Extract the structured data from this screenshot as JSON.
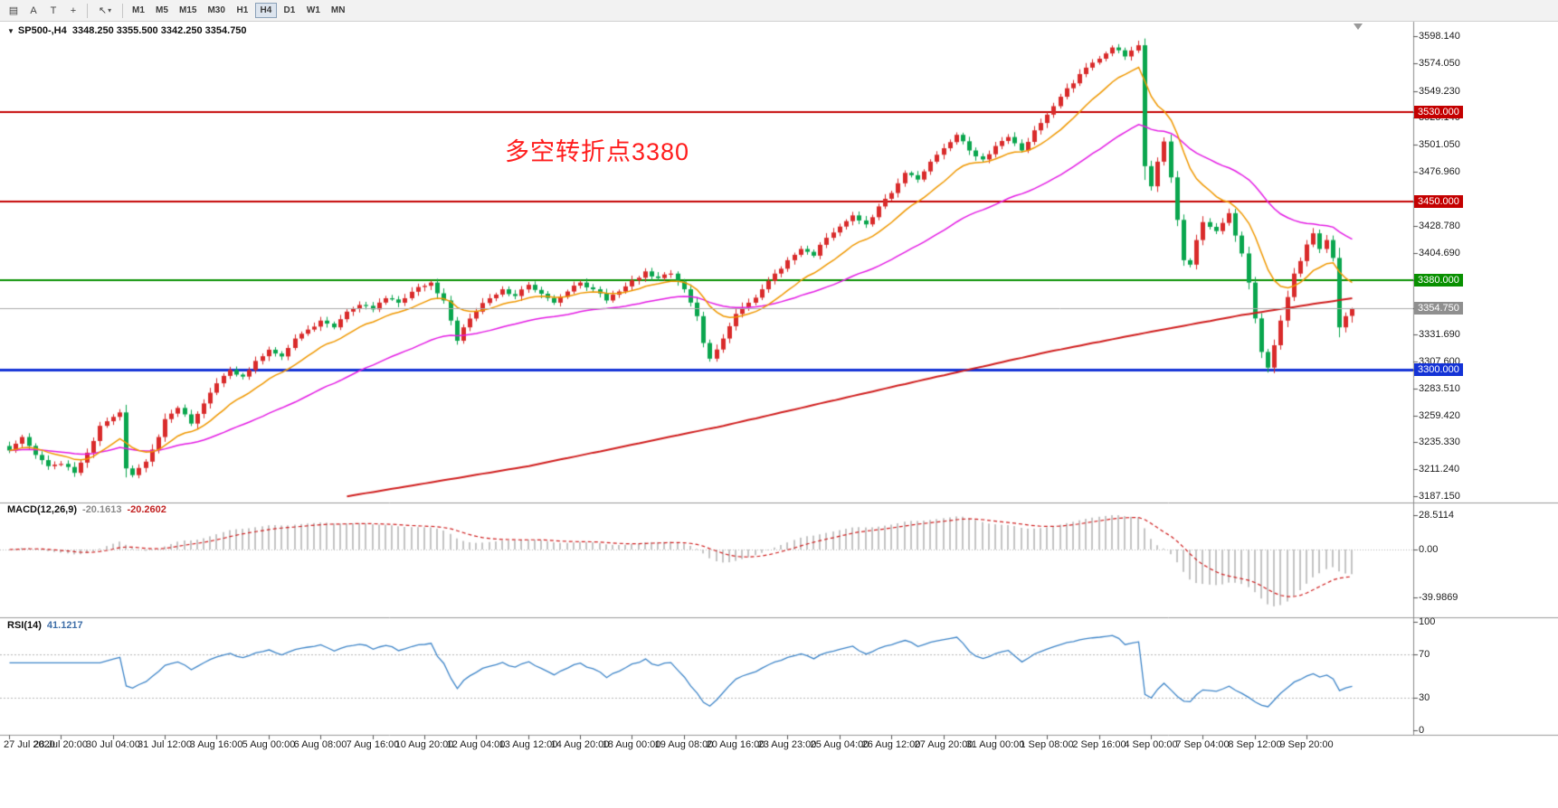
{
  "toolbar": {
    "tools": [
      {
        "name": "chart-window",
        "glyph": "▤"
      },
      {
        "name": "cursor-a",
        "glyph": "A"
      },
      {
        "name": "text-label",
        "glyph": "T"
      },
      {
        "name": "crosshair",
        "glyph": "+"
      }
    ],
    "draw_tool": {
      "name": "arrow-tools",
      "glyph": "↖",
      "caret": "▾"
    },
    "timeframes": [
      "M1",
      "M5",
      "M15",
      "M30",
      "H1",
      "H4",
      "D1",
      "W1",
      "MN"
    ],
    "selected_timeframe": "H4"
  },
  "chart": {
    "title_symbol": "SP500-,H4",
    "title_ohlc": "3348.250 3355.500 3342.250 3354.750",
    "annotation": {
      "text": "多空转折点3380",
      "color": "#ff1d1d"
    },
    "price_ticks": [
      "3598.140",
      "3574.050",
      "3549.230",
      "3525.140",
      "3501.050",
      "3476.960",
      "3428.780",
      "3404.690",
      "3331.690",
      "3307.600",
      "3283.510",
      "3259.420",
      "3235.330",
      "3211.240",
      "3187.150"
    ],
    "hlines": [
      {
        "label": "3530.000",
        "price": 3530.0,
        "color": "#c40000",
        "width": 2
      },
      {
        "label": "3450.000",
        "price": 3450.0,
        "color": "#c40000",
        "width": 2
      },
      {
        "label": "3380.000",
        "price": 3380.0,
        "color": "#089000",
        "width": 2
      },
      {
        "label": "3300.000",
        "price": 3300.0,
        "color": "#1433d6",
        "width": 3
      }
    ],
    "current_price": {
      "label": "3354.750",
      "price": 3354.75,
      "line_color": "#aaaaaa",
      "badge_color": "#8f8f8f"
    }
  },
  "macd": {
    "name": "MACD(12,26,9)",
    "value1": "-20.1613",
    "value2": "-20.2602",
    "ticks": [
      {
        "label": "28.5114",
        "v": 28.5114
      },
      {
        "label": "0.00",
        "v": 0
      },
      {
        "label": "-39.9869",
        "v": -39.9869
      }
    ]
  },
  "rsi": {
    "name": "RSI(14)",
    "value": "41.1217",
    "ticks": [
      {
        "label": "100",
        "v": 100
      },
      {
        "label": "70",
        "v": 70
      },
      {
        "label": "30",
        "v": 30
      },
      {
        "label": "0",
        "v": 0
      }
    ],
    "levels": [
      70,
      30
    ]
  },
  "chart_data": {
    "type": "candlestick",
    "symbol": "SP500-",
    "timeframe": "H4",
    "title": "SP500- H4 with MACD(12,26,9) and RSI(14)",
    "price_axis_range": [
      3187.15,
      3598.14
    ],
    "x_labels": [
      "27 Jul 2020",
      "28 Jul 20:00",
      "30 Jul 04:00",
      "31 Jul 12:00",
      "3 Aug 16:00",
      "5 Aug 00:00",
      "6 Aug 08:00",
      "7 Aug 16:00",
      "10 Aug 20:00",
      "12 Aug 04:00",
      "13 Aug 12:00",
      "14 Aug 20:00",
      "18 Aug 00:00",
      "19 Aug 08:00",
      "20 Aug 16:00",
      "23 Aug 23:00",
      "25 Aug 04:00",
      "26 Aug 12:00",
      "27 Aug 20:00",
      "31 Aug 00:00",
      "1 Sep 08:00",
      "2 Sep 16:00",
      "4 Sep 00:00",
      "7 Sep 04:00",
      "8 Sep 12:00",
      "9 Sep 20:00"
    ],
    "candles_per_label": 8,
    "num_candles": 208,
    "first_open": 3232,
    "last_candle": {
      "open": 3348.25,
      "high": 3355.5,
      "low": 3342.25,
      "close": 3354.75
    },
    "close_path_anchors": [
      [
        0,
        3228
      ],
      [
        2,
        3240
      ],
      [
        4,
        3224
      ],
      [
        6,
        3214
      ],
      [
        8,
        3216
      ],
      [
        10,
        3208
      ],
      [
        12,
        3226
      ],
      [
        14,
        3250
      ],
      [
        16,
        3258
      ],
      [
        17,
        3262
      ],
      [
        18,
        3212
      ],
      [
        19,
        3206
      ],
      [
        21,
        3218
      ],
      [
        23,
        3240
      ],
      [
        24,
        3256
      ],
      [
        26,
        3266
      ],
      [
        28,
        3252
      ],
      [
        30,
        3270
      ],
      [
        32,
        3288
      ],
      [
        34,
        3300
      ],
      [
        36,
        3294
      ],
      [
        38,
        3308
      ],
      [
        40,
        3318
      ],
      [
        42,
        3312
      ],
      [
        44,
        3328
      ],
      [
        46,
        3336
      ],
      [
        48,
        3344
      ],
      [
        50,
        3338
      ],
      [
        52,
        3352
      ],
      [
        54,
        3358
      ],
      [
        56,
        3354
      ],
      [
        58,
        3364
      ],
      [
        60,
        3360
      ],
      [
        63,
        3374
      ],
      [
        65,
        3378
      ],
      [
        67,
        3362
      ],
      [
        68,
        3344
      ],
      [
        69,
        3326
      ],
      [
        70,
        3338
      ],
      [
        72,
        3352
      ],
      [
        74,
        3364
      ],
      [
        76,
        3372
      ],
      [
        78,
        3366
      ],
      [
        80,
        3376
      ],
      [
        82,
        3368
      ],
      [
        84,
        3360
      ],
      [
        86,
        3370
      ],
      [
        88,
        3378
      ],
      [
        90,
        3372
      ],
      [
        92,
        3362
      ],
      [
        94,
        3370
      ],
      [
        96,
        3380
      ],
      [
        98,
        3388
      ],
      [
        100,
        3382
      ],
      [
        102,
        3386
      ],
      [
        104,
        3372
      ],
      [
        106,
        3348
      ],
      [
        107,
        3324
      ],
      [
        108,
        3310
      ],
      [
        110,
        3328
      ],
      [
        112,
        3350
      ],
      [
        114,
        3360
      ],
      [
        116,
        3372
      ],
      [
        118,
        3386
      ],
      [
        120,
        3398
      ],
      [
        122,
        3408
      ],
      [
        124,
        3402
      ],
      [
        126,
        3418
      ],
      [
        128,
        3428
      ],
      [
        130,
        3438
      ],
      [
        132,
        3430
      ],
      [
        134,
        3446
      ],
      [
        136,
        3458
      ],
      [
        138,
        3476
      ],
      [
        140,
        3470
      ],
      [
        142,
        3486
      ],
      [
        144,
        3498
      ],
      [
        146,
        3510
      ],
      [
        148,
        3496
      ],
      [
        150,
        3488
      ],
      [
        152,
        3500
      ],
      [
        154,
        3508
      ],
      [
        156,
        3496
      ],
      [
        158,
        3514
      ],
      [
        160,
        3528
      ],
      [
        162,
        3544
      ],
      [
        164,
        3556
      ],
      [
        166,
        3570
      ],
      [
        168,
        3578
      ],
      [
        170,
        3588
      ],
      [
        172,
        3580
      ],
      [
        174,
        3590
      ],
      [
        175,
        3482
      ],
      [
        176,
        3464
      ],
      [
        177,
        3486
      ],
      [
        178,
        3504
      ],
      [
        179,
        3472
      ],
      [
        180,
        3434
      ],
      [
        181,
        3398
      ],
      [
        182,
        3394
      ],
      [
        183,
        3416
      ],
      [
        184,
        3432
      ],
      [
        186,
        3424
      ],
      [
        188,
        3440
      ],
      [
        189,
        3420
      ],
      [
        190,
        3404
      ],
      [
        191,
        3378
      ],
      [
        192,
        3346
      ],
      [
        193,
        3316
      ],
      [
        194,
        3302
      ],
      [
        195,
        3322
      ],
      [
        196,
        3344
      ],
      [
        198,
        3386
      ],
      [
        200,
        3412
      ],
      [
        201,
        3422
      ],
      [
        202,
        3408
      ],
      [
        203,
        3416
      ],
      [
        204,
        3400
      ],
      [
        205,
        3338
      ],
      [
        206,
        3348
      ],
      [
        207,
        3354.75
      ]
    ],
    "slow_ma_path": [
      [
        52,
        3187
      ],
      [
        80,
        3214
      ],
      [
        110,
        3250
      ],
      [
        140,
        3290
      ],
      [
        160,
        3316
      ],
      [
        175,
        3333
      ],
      [
        190,
        3349
      ],
      [
        200,
        3358
      ],
      [
        207,
        3364
      ]
    ],
    "moving_averages": [
      {
        "name": "fast",
        "period": 13,
        "color": "#f09800"
      },
      {
        "name": "medium",
        "period": 42,
        "color": "#e41ce4"
      },
      {
        "name": "slow",
        "color": "#d01f1f"
      }
    ],
    "up_color": "#d92b2b",
    "down_color": "#0aa64e",
    "hlines": [
      3530,
      3450,
      3380,
      3300
    ],
    "macd": {
      "last": -20.1613,
      "signal_last": -20.2602,
      "axis_max": 28.5114,
      "axis_min": -39.9869
    },
    "rsi_last": 41.1217
  }
}
